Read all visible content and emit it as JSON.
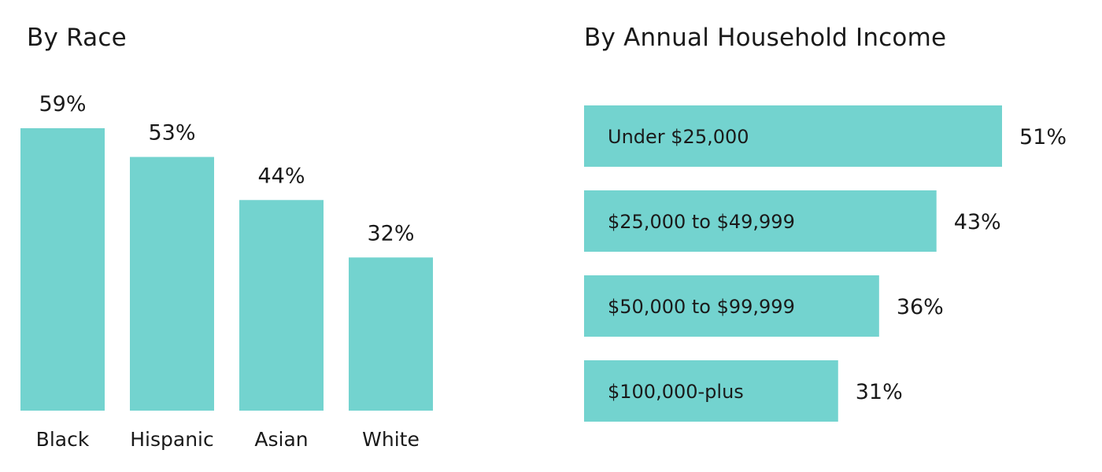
{
  "chart_data": [
    {
      "type": "bar",
      "orientation": "vertical",
      "title": "By Race",
      "categories": [
        "Black",
        "Hispanic",
        "Asian",
        "White"
      ],
      "values": [
        59,
        53,
        44,
        32
      ],
      "value_labels": [
        "59%",
        "53%",
        "44%",
        "32%"
      ],
      "unit": "%",
      "ylim": [
        0,
        59
      ],
      "grid": false,
      "axes_visible": false,
      "bar_color": "#73d3cf"
    },
    {
      "type": "bar",
      "orientation": "horizontal",
      "title": "By Annual Household Income",
      "categories": [
        "Under $25,000",
        "$25,000 to $49,999",
        "$50,000 to $99,999",
        "$100,000-plus"
      ],
      "values": [
        51,
        43,
        36,
        31
      ],
      "value_labels": [
        "51%",
        "43%",
        "36%",
        "31%"
      ],
      "unit": "%",
      "xlim": [
        0,
        51
      ],
      "grid": false,
      "axes_visible": false,
      "bar_color": "#73d3cf"
    }
  ]
}
